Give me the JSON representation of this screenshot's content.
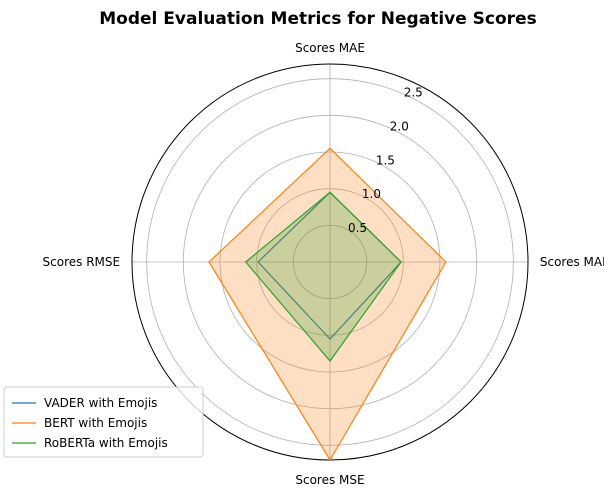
{
  "chart_data": {
    "type": "radar",
    "title": "Model Evaluation Metrics for Negative Scores",
    "axes": [
      "Scores MAE",
      "Scores MAD",
      "Scores MSE",
      "Scores RMSE"
    ],
    "rlim": [
      0,
      2.7
    ],
    "rticks": [
      0.5,
      1.0,
      1.5,
      2.0,
      2.5
    ],
    "rtick_labels": [
      "0.5",
      "1.0",
      "1.5",
      "2.0",
      "2.5"
    ],
    "grid": true,
    "legend_position": "bottom-left",
    "series": [
      {
        "name": "VADER with Emojis",
        "values": [
          0.95,
          0.97,
          1.05,
          0.98
        ],
        "color": "#1f77b4",
        "filled": false
      },
      {
        "name": "BERT with Emojis",
        "values": [
          1.55,
          1.58,
          2.7,
          1.65
        ],
        "color": "#ff7f0e",
        "filled": true
      },
      {
        "name": "RoBERTa with Emojis",
        "values": [
          0.95,
          0.97,
          1.35,
          1.15
        ],
        "color": "#2ca02c",
        "filled": true
      }
    ]
  }
}
